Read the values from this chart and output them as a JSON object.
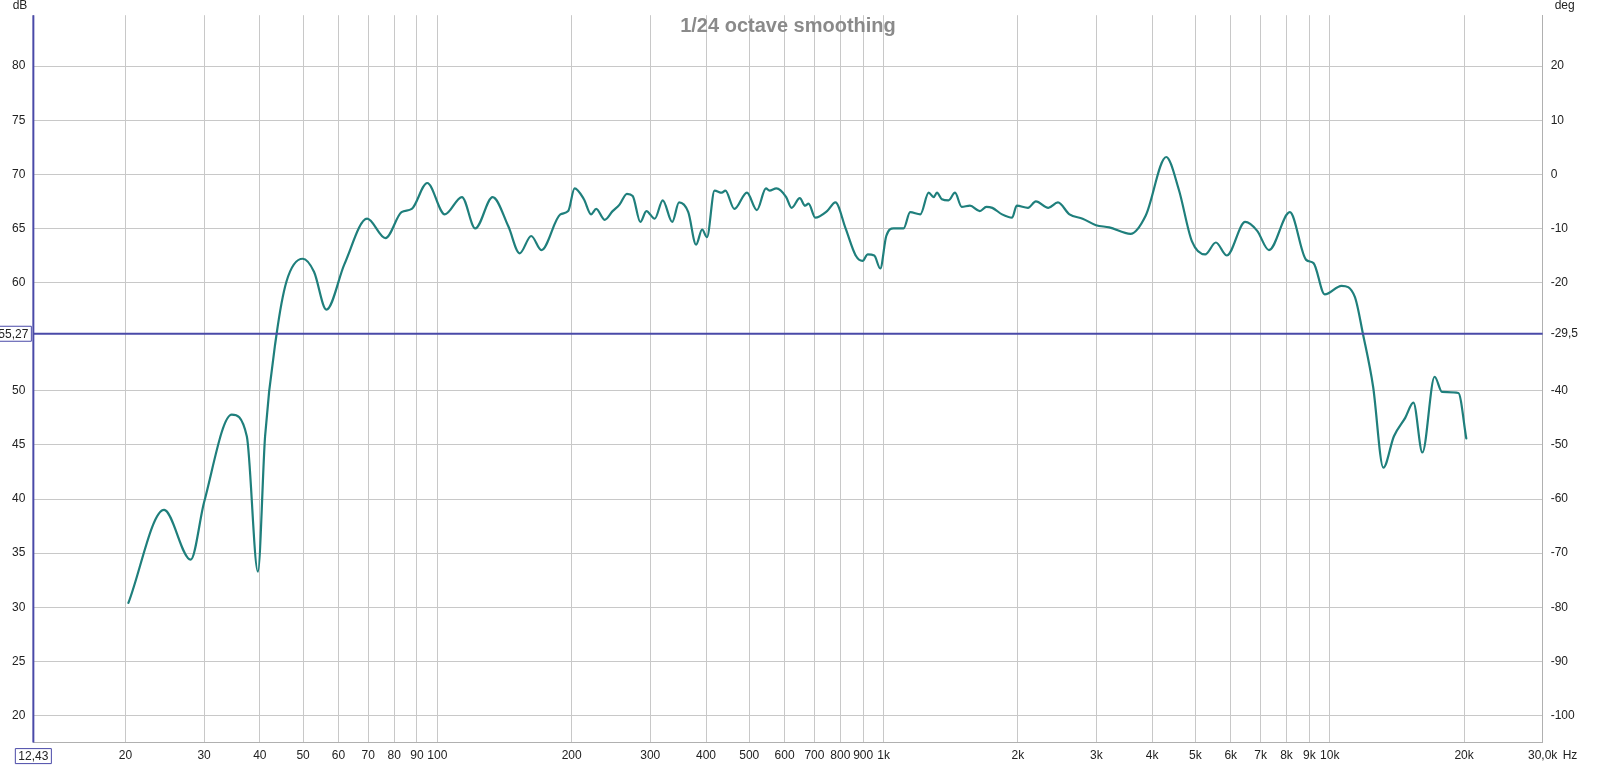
{
  "chart_data": {
    "type": "line",
    "title": "1/24 octave smoothing",
    "xlabel": "Hz",
    "ylabel": "dB",
    "y2label": "deg",
    "log": "x",
    "grid": true,
    "legend": false,
    "marker": "none",
    "line_style": "solid",
    "xlim": [
      12.43,
      30000
    ],
    "ylim": [
      17.5,
      84.7
    ],
    "y2lim": [
      -105,
      29.4
    ],
    "xticks": [
      20,
      30,
      40,
      50,
      60,
      70,
      80,
      90,
      100,
      200,
      300,
      400,
      500,
      600,
      700,
      800,
      900,
      {
        "value": 1000,
        "label": "1k"
      },
      {
        "value": 2000,
        "label": "2k"
      },
      {
        "value": 3000,
        "label": "3k"
      },
      {
        "value": 4000,
        "label": "4k"
      },
      {
        "value": 5000,
        "label": "5k"
      },
      {
        "value": 6000,
        "label": "6k"
      },
      {
        "value": 7000,
        "label": "7k"
      },
      {
        "value": 8000,
        "label": "8k"
      },
      {
        "value": 9000,
        "label": "9k"
      },
      {
        "value": 10000,
        "label": "10k"
      },
      {
        "value": 20000,
        "label": "20k"
      },
      {
        "value": 30000,
        "label": "30,0k"
      }
    ],
    "yticks": [
      20,
      25,
      30,
      35,
      40,
      45,
      50,
      60,
      65,
      70,
      75,
      80
    ],
    "y2ticks": [
      -100,
      -90,
      -80,
      -70,
      -60,
      -50,
      -40,
      {
        "value": -29.5,
        "label": "-29,5"
      },
      -20,
      -10,
      0,
      10,
      20
    ],
    "ref_lines": [
      {
        "axis": "y",
        "value": 55.27,
        "label": "55,27",
        "color": "#4a4aa8"
      },
      {
        "axis": "x",
        "value": 12.43,
        "label": "12,43",
        "color": "#4a4aa8"
      }
    ],
    "series": [
      {
        "color": "#1f7f7c",
        "x": [
          20.3,
          24.4,
          28.0,
          30,
          34.6,
          37.4,
          39.6,
          41.1,
          43.6,
          45.9,
          49.9,
          52.9,
          56.4,
          61.9,
          69.6,
          76.5,
          83.1,
          87.6,
          94.9,
          103.9,
          113.5,
          121.6,
          133,
          144.2,
          152.9,
          162.3,
          171,
          188.6,
          196.4,
          203,
          213,
          221,
          227,
          237,
          247,
          256,
          266,
          274,
          285,
          294,
          307,
          320,
          336,
          348,
          365,
          380,
          392,
          402,
          418,
          434,
          442,
          463,
          494,
          520,
          545,
          555,
          575,
          605,
          622,
          649,
          667,
          679,
          703,
          747,
          780,
          822,
          866,
          897,
          921,
          953,
          983,
          1014,
          1053,
          1109,
          1147,
          1209,
          1262,
          1295,
          1317,
          1351,
          1398,
          1446,
          1496,
          1562,
          1643,
          1700,
          1753,
          1843,
          1941,
          1988,
          2107,
          2194,
          2340,
          2459,
          2610,
          2793,
          2993,
          3204,
          3577,
          3869,
          4299,
          4588,
          4911,
          5258,
          5556,
          5879,
          6463,
          6870,
          7307,
          8137,
          8852,
          9197,
          9743,
          10628,
          11376,
          11875,
          12505,
          13185,
          13925,
          14760,
          15400,
          16130,
          17180,
          17850,
          19420,
          20230
        ],
        "values": [
          30.4,
          39.0,
          34.4,
          39.7,
          47.8,
          45.8,
          33.3,
          45.8,
          55.2,
          60.1,
          62.2,
          61.0,
          57.5,
          61.7,
          65.9,
          64.1,
          66.5,
          66.8,
          69.2,
          66.3,
          67.9,
          65.0,
          67.9,
          65.2,
          62.7,
          64.3,
          63.0,
          66.3,
          66.6,
          68.7,
          67.7,
          66.3,
          66.8,
          65.8,
          66.6,
          67.2,
          68.2,
          68.0,
          65.6,
          66.6,
          65.9,
          67.6,
          65.6,
          67.4,
          66.5,
          63.5,
          64.9,
          64.2,
          68.5,
          68.3,
          68.5,
          66.8,
          68.3,
          66.7,
          68.7,
          68.5,
          68.7,
          67.9,
          66.9,
          67.8,
          67.1,
          67.3,
          66.0,
          66.6,
          67.4,
          65.0,
          62.5,
          62.0,
          62.6,
          62.5,
          61.3,
          64.3,
          65.0,
          65.0,
          66.5,
          66.3,
          68.3,
          67.9,
          68.3,
          67.7,
          67.6,
          68.3,
          67.0,
          67.1,
          66.6,
          67.0,
          66.9,
          66.3,
          66.0,
          67.1,
          66.9,
          67.5,
          66.9,
          67.4,
          66.3,
          65.9,
          65.3,
          65.1,
          64.5,
          66.2,
          71.6,
          68.6,
          63.8,
          62.6,
          63.7,
          62.5,
          65.6,
          64.8,
          63.0,
          66.5,
          62.1,
          61.8,
          58.9,
          59.7,
          58.7,
          55.2,
          50.4,
          42.9,
          45.8,
          47.5,
          48.9,
          44.3,
          51.3,
          49.9,
          49.8,
          45.6
        ]
      }
    ]
  }
}
